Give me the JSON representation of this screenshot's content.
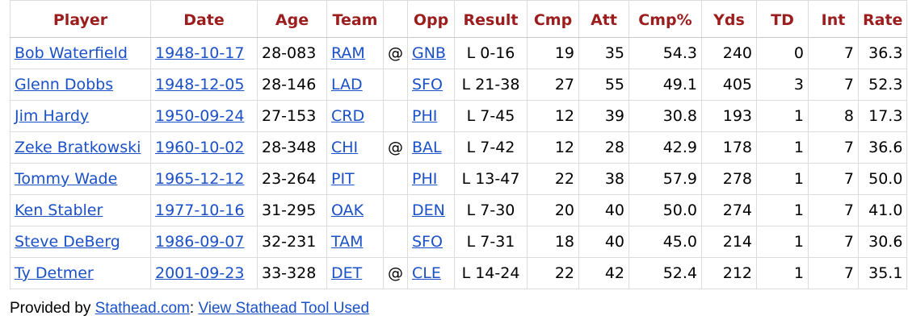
{
  "table": {
    "headers": {
      "player": "Player",
      "date": "Date",
      "age": "Age",
      "team": "Team",
      "at": "",
      "opp": "Opp",
      "result": "Result",
      "cmp": "Cmp",
      "att": "Att",
      "cmp_pct": "Cmp%",
      "yds": "Yds",
      "td": "TD",
      "int": "Int",
      "rate": "Rate"
    },
    "rows": [
      {
        "player": "Bob Waterfield",
        "date": "1948-10-17",
        "age": "28-083",
        "team": "RAM",
        "at": "@",
        "opp": "GNB",
        "result": "L 0-16",
        "cmp": "19",
        "att": "35",
        "cmp_pct": "54.3",
        "yds": "240",
        "td": "0",
        "int": "7",
        "rate": "36.3"
      },
      {
        "player": "Glenn Dobbs",
        "date": "1948-12-05",
        "age": "28-146",
        "team": "LAD",
        "at": "",
        "opp": "SFO",
        "result": "L 21-38",
        "cmp": "27",
        "att": "55",
        "cmp_pct": "49.1",
        "yds": "405",
        "td": "3",
        "int": "7",
        "rate": "52.3"
      },
      {
        "player": "Jim Hardy",
        "date": "1950-09-24",
        "age": "27-153",
        "team": "CRD",
        "at": "",
        "opp": "PHI",
        "result": "L 7-45",
        "cmp": "12",
        "att": "39",
        "cmp_pct": "30.8",
        "yds": "193",
        "td": "1",
        "int": "8",
        "rate": "17.3"
      },
      {
        "player": "Zeke Bratkowski",
        "date": "1960-10-02",
        "age": "28-348",
        "team": "CHI",
        "at": "@",
        "opp": "BAL",
        "result": "L 7-42",
        "cmp": "12",
        "att": "28",
        "cmp_pct": "42.9",
        "yds": "178",
        "td": "1",
        "int": "7",
        "rate": "36.6"
      },
      {
        "player": "Tommy Wade",
        "date": "1965-12-12",
        "age": "23-264",
        "team": "PIT",
        "at": "",
        "opp": "PHI",
        "result": "L 13-47",
        "cmp": "22",
        "att": "38",
        "cmp_pct": "57.9",
        "yds": "278",
        "td": "1",
        "int": "7",
        "rate": "50.0"
      },
      {
        "player": "Ken Stabler",
        "date": "1977-10-16",
        "age": "31-295",
        "team": "OAK",
        "at": "",
        "opp": "DEN",
        "result": "L 7-30",
        "cmp": "20",
        "att": "40",
        "cmp_pct": "50.0",
        "yds": "274",
        "td": "1",
        "int": "7",
        "rate": "41.0"
      },
      {
        "player": "Steve DeBerg",
        "date": "1986-09-07",
        "age": "32-231",
        "team": "TAM",
        "at": "",
        "opp": "SFO",
        "result": "L 7-31",
        "cmp": "18",
        "att": "40",
        "cmp_pct": "45.0",
        "yds": "214",
        "td": "1",
        "int": "7",
        "rate": "30.6"
      },
      {
        "player": "Ty Detmer",
        "date": "2001-09-23",
        "age": "33-328",
        "team": "DET",
        "at": "@",
        "opp": "CLE",
        "result": "L 14-24",
        "cmp": "22",
        "att": "42",
        "cmp_pct": "52.4",
        "yds": "212",
        "td": "1",
        "int": "7",
        "rate": "35.1"
      }
    ]
  },
  "footer": {
    "prefix": "Provided by ",
    "stathead_link": "Stathead.com",
    "separator": ": ",
    "tool_link": "View Stathead Tool Used"
  },
  "colors": {
    "header_text": "#9b1d1d",
    "link": "#1a50c8"
  }
}
